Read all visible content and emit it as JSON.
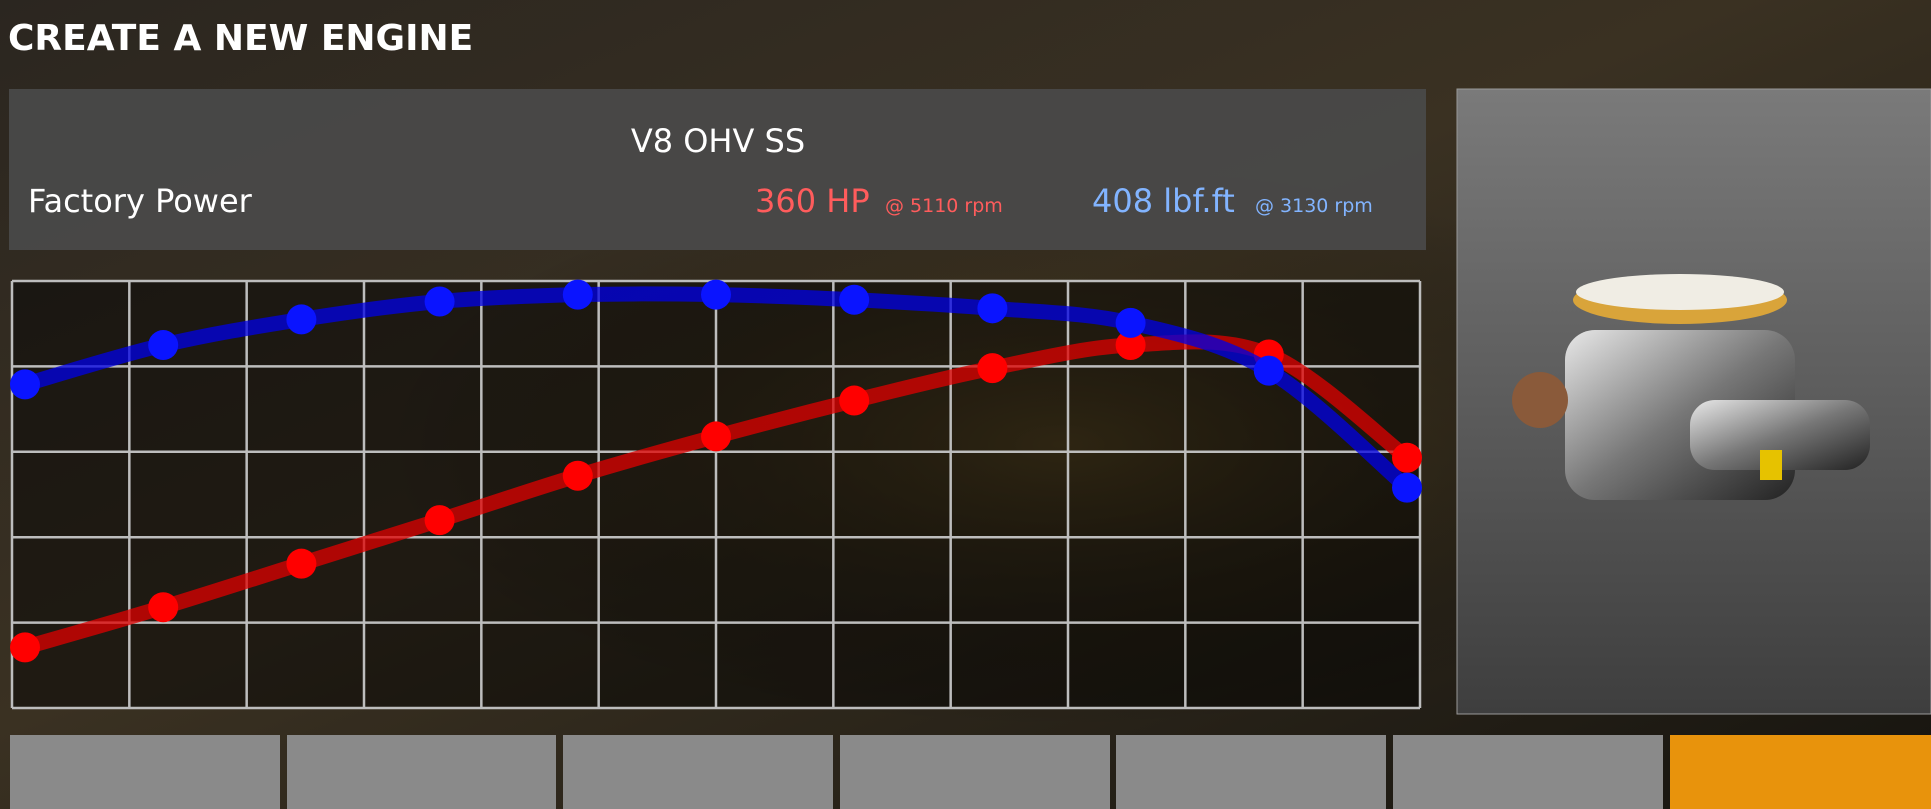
{
  "header": {
    "title": "CREATE A NEW ENGINE"
  },
  "panel": {
    "engine_name": "V8 OHV SS",
    "label": "Factory Power",
    "power": "360 HP",
    "power_rpm": "@ 5110 rpm",
    "torque": "408 lbf.ft",
    "torque_rpm": "@ 3130 rpm"
  },
  "chart_data": {
    "type": "line",
    "categories": [
      null,
      null,
      null,
      null,
      null,
      null,
      null,
      null,
      null,
      null,
      null
    ],
    "ylim": [
      0,
      5
    ],
    "yticks": [
      0,
      1,
      2,
      3,
      4,
      5
    ],
    "grid": true,
    "series": [
      {
        "color": "#e00000",
        "values": [
          0.71,
          1.18,
          1.69,
          2.2,
          2.72,
          3.18,
          3.6,
          3.98,
          4.25,
          4.14,
          2.93
        ]
      },
      {
        "color": "#0000e6",
        "values": [
          3.79,
          4.25,
          4.55,
          4.76,
          4.84,
          4.84,
          4.78,
          4.68,
          4.51,
          3.95,
          2.58
        ]
      }
    ]
  }
}
